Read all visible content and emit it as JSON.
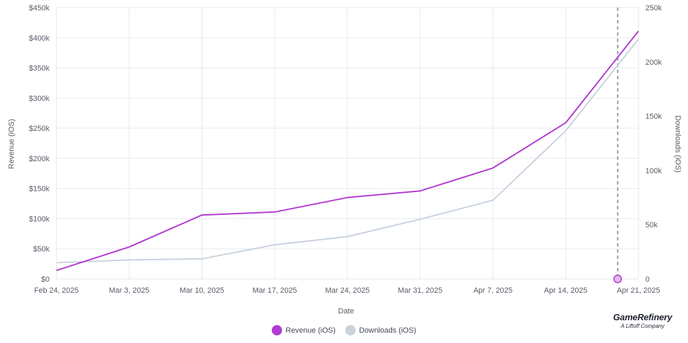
{
  "chart_data": {
    "type": "line",
    "xlabel": "Date",
    "ylabel_left": "Revenue (iOS)",
    "ylabel_right": "Downloads (iOS)",
    "x_ticks": [
      "Feb 24, 2025",
      "Mar 3, 2025",
      "Mar 10, 2025",
      "Mar 17, 2025",
      "Mar 24, 2025",
      "Mar 31, 2025",
      "Apr 7, 2025",
      "Apr 14, 2025",
      "Apr 21, 2025"
    ],
    "y_left_ticks": [
      "$0",
      "$50k",
      "$100k",
      "$150k",
      "$200k",
      "$250k",
      "$300k",
      "$350k",
      "$400k",
      "$450k"
    ],
    "y_right_ticks": [
      "0",
      "50k",
      "100k",
      "150k",
      "200k",
      "250k"
    ],
    "ylim_left": [
      0,
      450000
    ],
    "ylim_right": [
      0,
      250000
    ],
    "grid": true,
    "series": [
      {
        "name": "Revenue (iOS)",
        "axis": "left",
        "color": "#b13cd0",
        "x": [
          "Feb 24, 2025",
          "Mar 3, 2025",
          "Mar 10, 2025",
          "Mar 17, 2025",
          "Mar 24, 2025",
          "Mar 31, 2025",
          "Apr 7, 2025",
          "Apr 14, 2025",
          "Apr 21, 2025"
        ],
        "values": [
          14000,
          53000,
          106000,
          111000,
          135000,
          146000,
          184000,
          259000,
          411000
        ]
      },
      {
        "name": "Downloads (iOS)",
        "axis": "right",
        "color": "#c9d3df",
        "x": [
          "Feb 24, 2025",
          "Mar 3, 2025",
          "Mar 10, 2025",
          "Mar 17, 2025",
          "Mar 24, 2025",
          "Mar 31, 2025",
          "Apr 7, 2025",
          "Apr 14, 2025",
          "Apr 21, 2025"
        ],
        "values": [
          15000,
          17500,
          18500,
          31500,
          39000,
          55000,
          72500,
          136500,
          221000
        ]
      }
    ],
    "marker": {
      "date": "Apr 19, 2025",
      "style": "dashed vertical line",
      "color": "#9aa0aa"
    },
    "legend": {
      "placement": "bottom-center",
      "items": [
        {
          "label": "Revenue (iOS)",
          "color": "#b13cd0"
        },
        {
          "label": "Downloads (iOS)",
          "color": "#c9d3df"
        }
      ]
    }
  },
  "brand": {
    "name": "GameRefinery",
    "tagline": "A Liftoff Company"
  }
}
